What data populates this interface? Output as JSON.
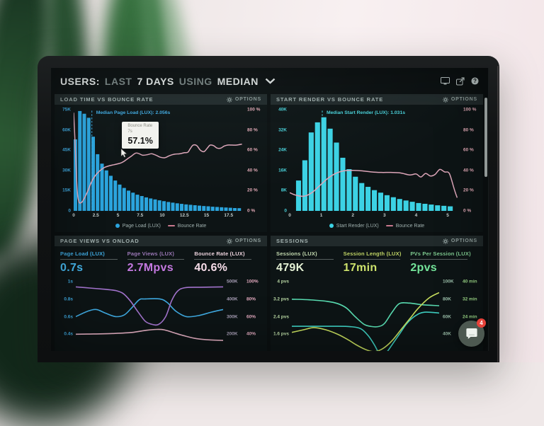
{
  "ui": {
    "options_label": "OPTIONS",
    "chat_badge": "4"
  },
  "header": {
    "segments": [
      {
        "text": "USERS:",
        "emphasis": true
      },
      {
        "text": "LAST",
        "emphasis": false
      },
      {
        "text": "7 DAYS",
        "emphasis": true
      },
      {
        "text": "USING",
        "emphasis": false
      },
      {
        "text": "MEDIAN",
        "emphasis": true
      }
    ],
    "icons": [
      "display-icon",
      "share-icon",
      "help-icon"
    ]
  },
  "chart_data": [
    {
      "type": "bar+line",
      "title": "LOAD TIME VS BOUNCE RATE",
      "xlim": [
        0,
        19.2
      ],
      "x_ticks": [
        "0",
        "2.5",
        "5",
        "7.5",
        "10",
        "12.5",
        "15",
        "17.5"
      ],
      "x_tick_values": [
        0,
        2.5,
        5,
        7.5,
        10,
        12.5,
        15,
        17.5
      ],
      "x_color": "#c4cecd",
      "left_ticks": [
        "75K",
        "60K",
        "45K",
        "30K",
        "15K",
        "0"
      ],
      "left_ylim_k": 75,
      "left_color": "#3fa9e0",
      "right_ticks": [
        "100 %",
        "80 %",
        "60 %",
        "40 %",
        "20 %",
        "0 %"
      ],
      "right_ylim": [
        0,
        100
      ],
      "right_color": "#e3a9b6",
      "bar_series": {
        "name": "Page Load (LUX)",
        "unit": "seconds",
        "color": "#2ba4dd",
        "bar_start": 0,
        "bar_step": 0.5,
        "values_k": [
          53,
          74,
          72,
          69,
          55,
          42,
          35,
          30,
          26,
          22.5,
          19.5,
          17,
          15,
          13.5,
          12,
          11,
          10,
          9.2,
          8.5,
          7.8,
          7.2,
          6.6,
          6.1,
          5.6,
          5.2,
          4.8,
          4.5,
          4.2,
          3.9,
          3.6,
          3.4,
          3.1,
          2.9,
          2.7,
          2.5,
          2.3,
          2.1,
          2
        ]
      },
      "line_series": {
        "name": "Bounce Rate",
        "unit": "%",
        "color": "#ddA6b9",
        "points": [
          [
            0,
            97
          ],
          [
            0.2,
            60
          ],
          [
            0.4,
            20
          ],
          [
            0.6,
            9
          ],
          [
            0.8,
            8
          ],
          [
            1,
            9.5
          ],
          [
            1.3,
            14
          ],
          [
            1.7,
            22
          ],
          [
            2.1,
            30
          ],
          [
            2.5,
            35.5
          ],
          [
            3,
            40
          ],
          [
            3.5,
            43
          ],
          [
            4,
            44.5
          ],
          [
            4.5,
            45.5
          ],
          [
            5,
            46.5
          ],
          [
            5.5,
            48
          ],
          [
            6,
            51
          ],
          [
            6.5,
            54
          ],
          [
            7,
            57.1
          ],
          [
            7.4,
            56.5
          ],
          [
            7.8,
            55
          ],
          [
            8.3,
            55.5
          ],
          [
            8.8,
            56.5
          ],
          [
            9.3,
            55
          ],
          [
            9.8,
            53
          ],
          [
            10.3,
            52.5
          ],
          [
            10.8,
            54.5
          ],
          [
            11.4,
            56
          ],
          [
            12,
            56.5
          ],
          [
            12.5,
            57.5
          ],
          [
            12.9,
            58
          ],
          [
            13.2,
            62
          ],
          [
            13.5,
            65
          ],
          [
            13.9,
            64.5
          ],
          [
            14.3,
            60
          ],
          [
            14.7,
            58.5
          ],
          [
            15.1,
            62
          ],
          [
            15.4,
            65
          ],
          [
            15.8,
            64.5
          ],
          [
            16.2,
            62
          ],
          [
            16.6,
            62
          ],
          [
            17,
            64
          ],
          [
            17.4,
            65
          ],
          [
            17.9,
            65
          ],
          [
            18.4,
            65
          ],
          [
            19,
            66
          ]
        ]
      },
      "median": {
        "label": "Median Page Load (LUX): 2.056s",
        "value": 2.056,
        "color": "#3fa9e0"
      },
      "tooltip": {
        "line1": "Bounce Rate",
        "line2": "7s",
        "value": "57.1%",
        "x": 7
      },
      "legend": [
        {
          "marker": "dot",
          "color": "#2ba4dd",
          "label": "Page Load (LUX)"
        },
        {
          "marker": "line",
          "color": "#c9798e",
          "label": "Bounce Rate"
        }
      ]
    },
    {
      "type": "bar+line",
      "title": "START RENDER VS BOUNCE RATE",
      "xlim": [
        0,
        5.38
      ],
      "x_ticks": [
        "0",
        "1",
        "2",
        "3",
        "4",
        "5"
      ],
      "x_tick_values": [
        0,
        1,
        2,
        3,
        4,
        5
      ],
      "x_color": "#c4cecd",
      "left_ticks": [
        "40K",
        "32K",
        "24K",
        "16K",
        "8K",
        "0"
      ],
      "left_ylim_k": 40,
      "left_color": "#49d2da",
      "right_ticks": [
        "100 %",
        "80 %",
        "60 %",
        "40 %",
        "20 %",
        "0 %"
      ],
      "right_ylim": [
        0,
        100
      ],
      "right_color": "#e3a9b6",
      "bar_series": {
        "name": "Start Render (LUX)",
        "unit": "seconds",
        "color": "#3cd2e4",
        "bar_start": 0.2,
        "bar_step": 0.2,
        "values_k": [
          12,
          20,
          31,
          35,
          37,
          32.5,
          27,
          21,
          16.5,
          13.5,
          11,
          9.5,
          8.2,
          7.2,
          6.2,
          5.4,
          4.7,
          4.1,
          3.6,
          3.1,
          2.8,
          2.5,
          2.2,
          2,
          1.8
        ]
      },
      "line_series": {
        "name": "Bounce Rate",
        "unit": "%",
        "color": "#ddA6b9",
        "points": [
          [
            0,
            18
          ],
          [
            0.2,
            15.5
          ],
          [
            0.45,
            14.5
          ],
          [
            0.7,
            18
          ],
          [
            0.95,
            25
          ],
          [
            1.2,
            32
          ],
          [
            1.45,
            37
          ],
          [
            1.7,
            39.5
          ],
          [
            2,
            40
          ],
          [
            2.3,
            39.5
          ],
          [
            2.6,
            38.5
          ],
          [
            2.9,
            38
          ],
          [
            3.2,
            38
          ],
          [
            3.5,
            37.5
          ],
          [
            3.8,
            35.5
          ],
          [
            4,
            36.5
          ],
          [
            4.15,
            33.5
          ],
          [
            4.3,
            37
          ],
          [
            4.45,
            34.5
          ],
          [
            4.6,
            36
          ],
          [
            4.75,
            41
          ],
          [
            4.9,
            38.5
          ],
          [
            5.05,
            37
          ],
          [
            5.2,
            22
          ],
          [
            5.3,
            13
          ]
        ]
      },
      "median": {
        "label": "Median Start Render (LUX): 1.031s",
        "value": 1.031,
        "color": "#49d2da"
      },
      "legend": [
        {
          "marker": "dot",
          "color": "#3cd2e4",
          "label": "Start Render (LUX)"
        },
        {
          "marker": "line",
          "color": "#c9798e",
          "label": "Bounce Rate"
        }
      ]
    },
    {
      "type": "multi-line",
      "title": "PAGE VIEWS VS ONLOAD",
      "metrics": [
        {
          "label": "Page Load (LUX)",
          "value": "0.7s",
          "label_color": "#3fa9e0",
          "value_color": "#45b4ea"
        },
        {
          "label": "Page Views (LUX)",
          "value": "2.7Mpvs",
          "label_color": "#9a77b5",
          "value_color": "#c478e0"
        },
        {
          "label": "Bounce Rate (LUX)",
          "value": "40.6%",
          "label_color": "#ecd2dc",
          "value_color": "#f7dde9"
        }
      ],
      "left_ticks": [
        "1s",
        "0.8s",
        "0.6s",
        "0.4s"
      ],
      "left_color": "#3fa9e0",
      "right_ticks": [
        [
          "500K",
          "100%"
        ],
        [
          "400K",
          "80%"
        ],
        [
          "300K",
          "60%"
        ],
        [
          "200K",
          "40%"
        ]
      ],
      "right_colors": [
        "#a89fb6",
        "#e3aabf"
      ],
      "series": [
        {
          "name": "Page Load (LUX)",
          "unit": "s",
          "color": "#3fa9e0",
          "ylim": [
            0.21,
            1.02
          ],
          "points": [
            [
              0,
              0.6
            ],
            [
              8,
              0.66
            ],
            [
              14,
              0.68
            ],
            [
              20,
              0.64
            ],
            [
              27,
              0.6
            ],
            [
              33,
              0.62
            ],
            [
              38,
              0.7
            ],
            [
              43,
              0.79
            ],
            [
              47,
              0.8
            ],
            [
              57,
              0.8
            ],
            [
              62,
              0.76
            ],
            [
              68,
              0.66
            ],
            [
              75,
              0.6
            ],
            [
              83,
              0.61
            ],
            [
              92,
              0.65
            ],
            [
              100,
              0.68
            ]
          ]
        },
        {
          "name": "Page Views (LUX)",
          "unit": "K",
          "color": "#a273cc",
          "ylim": [
            104,
            512
          ],
          "points": [
            [
              0,
              470
            ],
            [
              10,
              463
            ],
            [
              20,
              456
            ],
            [
              27,
              449
            ],
            [
              32,
              433
            ],
            [
              37,
              390
            ],
            [
              42,
              330
            ],
            [
              47,
              275
            ],
            [
              51,
              258
            ],
            [
              56,
              255
            ],
            [
              61,
              300
            ],
            [
              65,
              390
            ],
            [
              69,
              445
            ],
            [
              74,
              465
            ],
            [
              85,
              468
            ],
            [
              100,
              470
            ]
          ]
        },
        {
          "name": "Bounce Rate (LUX)",
          "unit": "%",
          "color": "#e2aec1",
          "ylim": [
            21,
            102
          ],
          "points": [
            [
              0,
              40
            ],
            [
              12,
              40.3
            ],
            [
              25,
              40.8
            ],
            [
              38,
              42
            ],
            [
              48,
              44.5
            ],
            [
              55,
              45.5
            ],
            [
              60,
              45
            ],
            [
              66,
              42
            ],
            [
              73,
              38.5
            ],
            [
              82,
              35
            ],
            [
              92,
              33.5
            ],
            [
              100,
              33
            ]
          ]
        }
      ]
    },
    {
      "type": "multi-line",
      "title": "SESSIONS",
      "metrics": [
        {
          "label": "Sessions (LUX)",
          "value": "479K",
          "label_color": "#c3d9af",
          "value_color": "#e3f0d3"
        },
        {
          "label": "Session Length (LUX)",
          "value": "17min",
          "label_color": "#c0d465",
          "value_color": "#cde26c"
        },
        {
          "label": "PVs Per Session (LUX)",
          "value": "2pvs",
          "label_color": "#7ec98f",
          "value_color": "#74e59a"
        }
      ],
      "left_ticks": [
        "4 pvs",
        "3.2 pvs",
        "2.4 pvs",
        "1.6 pvs"
      ],
      "left_color": "#b9d8a4",
      "right_ticks": [
        [
          "100K",
          "40 min"
        ],
        [
          "80K",
          "32 min"
        ],
        [
          "60K",
          "24 min"
        ],
        [
          "40K",
          ""
        ]
      ],
      "right_colors": [
        "#9cc0ab",
        "#9fdc8a"
      ],
      "series": [
        {
          "name": "PVs Per Session (LUX)",
          "unit": "pvs",
          "color": "#59dcb1",
          "ylim": [
            0.83,
            4.1
          ],
          "points": [
            [
              0,
              3.2
            ],
            [
              12,
              3.17
            ],
            [
              24,
              3.1
            ],
            [
              31,
              3
            ],
            [
              37,
              2.8
            ],
            [
              43,
              2.4
            ],
            [
              49,
              2.05
            ],
            [
              54,
              1.95
            ],
            [
              59,
              1.95
            ],
            [
              63,
              2.1
            ],
            [
              68,
              2.6
            ],
            [
              73,
              3
            ],
            [
              80,
              3.02
            ],
            [
              88,
              2.95
            ],
            [
              100,
              2.9
            ]
          ]
        },
        {
          "name": "Sessions (LUX)",
          "unit": "K",
          "color": "#3ed0c2",
          "ylim": [
            21,
            102
          ],
          "points": [
            [
              0,
              49
            ],
            [
              28,
              49
            ],
            [
              40,
              48.5
            ],
            [
              47,
              46
            ],
            [
              52,
              38
            ],
            [
              56,
              28
            ],
            [
              60,
              17
            ],
            [
              64,
              19
            ],
            [
              68,
              28
            ],
            [
              73,
              40
            ],
            [
              78,
              52
            ],
            [
              84,
              61
            ],
            [
              90,
              65
            ],
            [
              100,
              64
            ]
          ]
        },
        {
          "name": "Session Length (LUX)",
          "unit": "min",
          "color": "#c7de5e",
          "ylim": [
            8.3,
            41
          ],
          "points": [
            [
              0,
              16.8
            ],
            [
              8,
              18
            ],
            [
              15,
              19
            ],
            [
              23,
              18
            ],
            [
              31,
              16
            ],
            [
              38,
              13.5
            ],
            [
              44,
              11
            ],
            [
              50,
              9
            ],
            [
              56,
              8
            ],
            [
              62,
              9.5
            ],
            [
              68,
              13
            ],
            [
              74,
              18
            ],
            [
              80,
              23
            ],
            [
              86,
              28
            ],
            [
              93,
              32.5
            ],
            [
              100,
              35
            ]
          ]
        }
      ]
    }
  ]
}
